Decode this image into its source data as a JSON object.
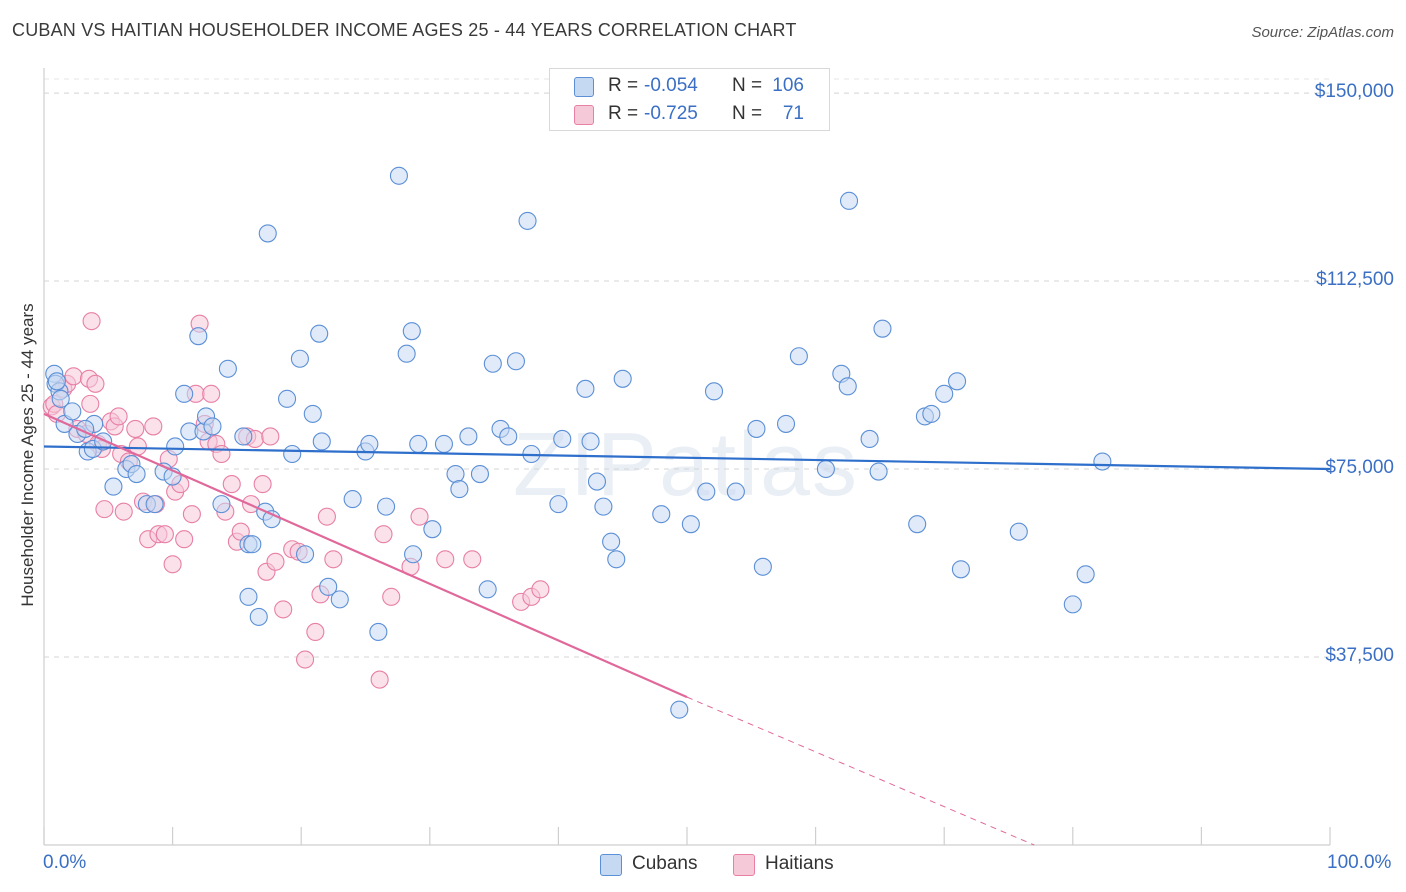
{
  "title": "CUBAN VS HAITIAN HOUSEHOLDER INCOME AGES 25 - 44 YEARS CORRELATION CHART",
  "source": "Source: ZipAtlas.com",
  "watermark": "ZIPatlas",
  "legend": {
    "rows": [
      {
        "r_label": "R =",
        "r_value": "-0.054",
        "n_label": "N =",
        "n_value": "106"
      },
      {
        "r_label": "R =",
        "r_value": "-0.725",
        "n_label": "N =",
        "n_value": "71"
      }
    ]
  },
  "bottom_legend": {
    "cubans": "Cubans",
    "haitians": "Haitians"
  },
  "colors": {
    "cubans": "#5b8fd6",
    "cubans_fill": "#c6d9f2",
    "haitians": "#e87fa5",
    "haitians_fill": "#f6c9d9",
    "accent": "#3a6fc4",
    "cubans_line": "#2f6fcc",
    "haitians_line": "#e0689a"
  },
  "chart_data": {
    "type": "scatter",
    "title": "CUBAN VS HAITIAN HOUSEHOLDER INCOME AGES 25 - 44 YEARS CORRELATION CHART",
    "xlabel": "",
    "ylabel": "Householder Income Ages 25 - 44 years",
    "xlim": [
      0,
      100
    ],
    "ylim": [
      0,
      155000
    ],
    "x_tick_labels": [
      "0.0%",
      "100.0%"
    ],
    "y_ticks": [
      37500,
      75000,
      112500,
      150000
    ],
    "y_tick_labels": [
      "$37,500",
      "$75,000",
      "$112,500",
      "$150,000"
    ],
    "grid": true,
    "series": [
      {
        "name": "Cubans",
        "trend": {
          "x": [
            0,
            100
          ],
          "y": [
            79500,
            75000
          ],
          "style": "solid"
        },
        "points": [
          [
            0.8,
            94000
          ],
          [
            0.9,
            92000
          ],
          [
            1.2,
            90500
          ],
          [
            1.3,
            89000
          ],
          [
            1.6,
            84000
          ],
          [
            2.2,
            86500
          ],
          [
            2.6,
            82000
          ],
          [
            3.4,
            78500
          ],
          [
            3.8,
            79000
          ],
          [
            3.9,
            84000
          ],
          [
            4.6,
            80500
          ],
          [
            5.4,
            71500
          ],
          [
            6.4,
            75000
          ],
          [
            6.8,
            76000
          ],
          [
            7.2,
            74000
          ],
          [
            8.0,
            68000
          ],
          [
            8.6,
            68000
          ],
          [
            9.3,
            74500
          ],
          [
            10.0,
            73500
          ],
          [
            10.2,
            79500
          ],
          [
            10.9,
            90000
          ],
          [
            11.3,
            82500
          ],
          [
            12.0,
            101500
          ],
          [
            12.4,
            82500
          ],
          [
            12.6,
            85500
          ],
          [
            13.1,
            83500
          ],
          [
            13.8,
            68000
          ],
          [
            14.3,
            95000
          ],
          [
            15.5,
            81500
          ],
          [
            15.9,
            60000
          ],
          [
            15.9,
            49500
          ],
          [
            16.2,
            60000
          ],
          [
            16.7,
            45500
          ],
          [
            17.2,
            66500
          ],
          [
            17.4,
            122000
          ],
          [
            17.7,
            65000
          ],
          [
            18.9,
            89000
          ],
          [
            19.3,
            78000
          ],
          [
            19.9,
            97000
          ],
          [
            20.3,
            58000
          ],
          [
            20.9,
            86000
          ],
          [
            21.4,
            102000
          ],
          [
            21.6,
            80500
          ],
          [
            22.1,
            51500
          ],
          [
            23.0,
            49000
          ],
          [
            24.0,
            69000
          ],
          [
            25.0,
            78500
          ],
          [
            25.3,
            80000
          ],
          [
            26.0,
            42500
          ],
          [
            26.6,
            67500
          ],
          [
            27.6,
            133500
          ],
          [
            28.2,
            98000
          ],
          [
            28.6,
            102500
          ],
          [
            28.7,
            58000
          ],
          [
            29.1,
            80000
          ],
          [
            30.2,
            63000
          ],
          [
            31.1,
            80000
          ],
          [
            32.0,
            74000
          ],
          [
            32.3,
            71000
          ],
          [
            33.0,
            81500
          ],
          [
            33.9,
            74000
          ],
          [
            34.5,
            51000
          ],
          [
            34.9,
            96000
          ],
          [
            35.5,
            83000
          ],
          [
            36.1,
            81500
          ],
          [
            36.7,
            96500
          ],
          [
            37.6,
            124500
          ],
          [
            37.9,
            78000
          ],
          [
            40.0,
            68000
          ],
          [
            40.3,
            81000
          ],
          [
            42.1,
            91000
          ],
          [
            42.5,
            80500
          ],
          [
            43.0,
            72500
          ],
          [
            43.5,
            67500
          ],
          [
            44.1,
            60500
          ],
          [
            44.5,
            57000
          ],
          [
            45.0,
            93000
          ],
          [
            48.0,
            66000
          ],
          [
            49.4,
            27000
          ],
          [
            50.3,
            64000
          ],
          [
            51.5,
            70500
          ],
          [
            52.1,
            90500
          ],
          [
            53.8,
            70500
          ],
          [
            55.4,
            83000
          ],
          [
            55.9,
            55500
          ],
          [
            57.7,
            84000
          ],
          [
            58.7,
            97500
          ],
          [
            60.8,
            75000
          ],
          [
            62.0,
            94000
          ],
          [
            62.5,
            91500
          ],
          [
            62.6,
            128500
          ],
          [
            64.2,
            81000
          ],
          [
            64.9,
            74500
          ],
          [
            65.2,
            103000
          ],
          [
            67.9,
            64000
          ],
          [
            68.5,
            85500
          ],
          [
            69.0,
            86000
          ],
          [
            70.0,
            90000
          ],
          [
            71.0,
            92500
          ],
          [
            71.3,
            55000
          ],
          [
            75.8,
            62500
          ],
          [
            80.0,
            48000
          ],
          [
            81.0,
            54000
          ],
          [
            82.3,
            76500
          ],
          [
            1.0,
            92500
          ],
          [
            3.2,
            83000
          ]
        ]
      },
      {
        "name": "Haitians",
        "trend": {
          "x": [
            0,
            50
          ],
          "y": [
            86000,
            29500
          ],
          "style": "solid"
        },
        "trend_dashed": {
          "x": [
            50,
            77
          ],
          "y": [
            29500,
            0
          ],
          "style": "dashed"
        },
        "points": [
          [
            0.6,
            87500
          ],
          [
            0.8,
            88000
          ],
          [
            1.0,
            86000
          ],
          [
            1.5,
            91000
          ],
          [
            1.8,
            92000
          ],
          [
            2.3,
            93500
          ],
          [
            2.6,
            83000
          ],
          [
            3.3,
            82000
          ],
          [
            3.5,
            93000
          ],
          [
            3.6,
            88000
          ],
          [
            3.7,
            104500
          ],
          [
            4.0,
            92000
          ],
          [
            4.2,
            80000
          ],
          [
            4.5,
            79000
          ],
          [
            4.7,
            67000
          ],
          [
            5.2,
            84500
          ],
          [
            5.5,
            83500
          ],
          [
            5.8,
            85500
          ],
          [
            6.0,
            78000
          ],
          [
            6.2,
            66500
          ],
          [
            6.6,
            76500
          ],
          [
            7.1,
            83000
          ],
          [
            7.3,
            79500
          ],
          [
            7.7,
            68500
          ],
          [
            8.1,
            61000
          ],
          [
            8.5,
            83500
          ],
          [
            8.7,
            68000
          ],
          [
            8.9,
            62000
          ],
          [
            9.4,
            62000
          ],
          [
            9.7,
            77000
          ],
          [
            10.0,
            56000
          ],
          [
            10.2,
            70500
          ],
          [
            10.6,
            72000
          ],
          [
            10.9,
            61000
          ],
          [
            11.5,
            66000
          ],
          [
            11.8,
            90000
          ],
          [
            12.1,
            104000
          ],
          [
            12.5,
            84000
          ],
          [
            12.8,
            80500
          ],
          [
            13.0,
            90000
          ],
          [
            13.4,
            80000
          ],
          [
            13.8,
            78000
          ],
          [
            14.1,
            66500
          ],
          [
            14.6,
            72000
          ],
          [
            15.0,
            60500
          ],
          [
            15.3,
            62500
          ],
          [
            15.8,
            81500
          ],
          [
            16.1,
            68000
          ],
          [
            16.4,
            81000
          ],
          [
            17.0,
            72000
          ],
          [
            17.3,
            54500
          ],
          [
            17.6,
            81500
          ],
          [
            18.0,
            56500
          ],
          [
            18.6,
            47000
          ],
          [
            19.3,
            59000
          ],
          [
            19.8,
            58500
          ],
          [
            20.3,
            37000
          ],
          [
            21.1,
            42500
          ],
          [
            21.5,
            50000
          ],
          [
            22.0,
            65500
          ],
          [
            22.5,
            57000
          ],
          [
            26.1,
            33000
          ],
          [
            26.4,
            62000
          ],
          [
            27.0,
            49500
          ],
          [
            28.5,
            55500
          ],
          [
            29.2,
            65500
          ],
          [
            31.2,
            57000
          ],
          [
            33.3,
            57000
          ],
          [
            37.1,
            48500
          ],
          [
            37.9,
            49500
          ],
          [
            38.6,
            51000
          ]
        ]
      }
    ]
  }
}
